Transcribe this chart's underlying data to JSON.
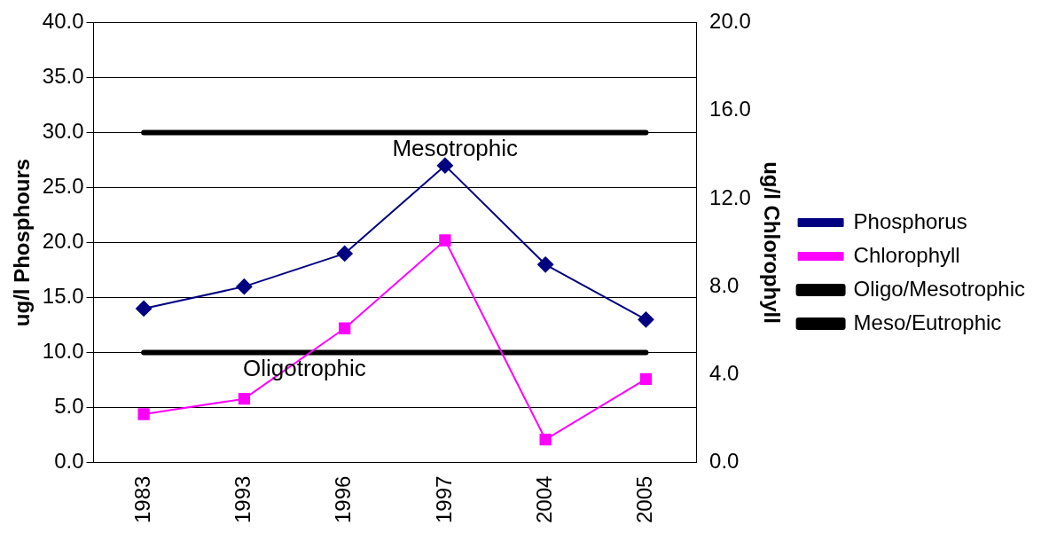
{
  "chart_data": {
    "type": "line",
    "ylabel": "ug/l Phosphours",
    "y2label": "ug/l Chlorophyll",
    "categories": [
      "1983",
      "1993",
      "1996",
      "1997",
      "2004",
      "2005"
    ],
    "series": [
      {
        "name": "Phosphorus",
        "color": "#000080",
        "marker": "diamond",
        "values": [
          14,
          16,
          19,
          27,
          18,
          13
        ]
      },
      {
        "name": "Chlorophyll",
        "color": "#ff00ff",
        "marker": "square",
        "axis": "y2",
        "values": [
          2.2,
          2.9,
          6.1,
          10.1,
          1.05,
          3.8
        ]
      },
      {
        "name": "Oligo/Mesotrophic",
        "color": "#000000",
        "marker": "none",
        "values": [
          10,
          10,
          10,
          10,
          10,
          10
        ]
      },
      {
        "name": "Meso/Eutrophic",
        "color": "#000000",
        "marker": "none",
        "values": [
          30,
          30,
          30,
          30,
          30,
          30
        ]
      }
    ],
    "ylim": [
      0,
      40
    ],
    "yticks": [
      {
        "value": 0,
        "label": "0.0"
      },
      {
        "value": 5,
        "label": "5.0"
      },
      {
        "value": 10,
        "label": "10.0"
      },
      {
        "value": 15,
        "label": "15.0"
      },
      {
        "value": 20,
        "label": "20.0"
      },
      {
        "value": 25,
        "label": "25.0"
      },
      {
        "value": 30,
        "label": "30.0"
      },
      {
        "value": 35,
        "label": "35.0"
      },
      {
        "value": 40,
        "label": "40.0"
      }
    ],
    "y2lim": [
      0,
      20
    ],
    "y2ticks": [
      {
        "value": 0,
        "label": "0.0"
      },
      {
        "value": 4,
        "label": "4.0"
      },
      {
        "value": 8,
        "label": "8.0"
      },
      {
        "value": 12,
        "label": "12.0"
      },
      {
        "value": 16,
        "label": "16.0"
      },
      {
        "value": 20,
        "label": "20.0"
      }
    ],
    "annotations": [
      "Mesotrophic",
      "Oligotrophic"
    ],
    "grid": "y",
    "legend": "right",
    "line_style": "solid"
  }
}
